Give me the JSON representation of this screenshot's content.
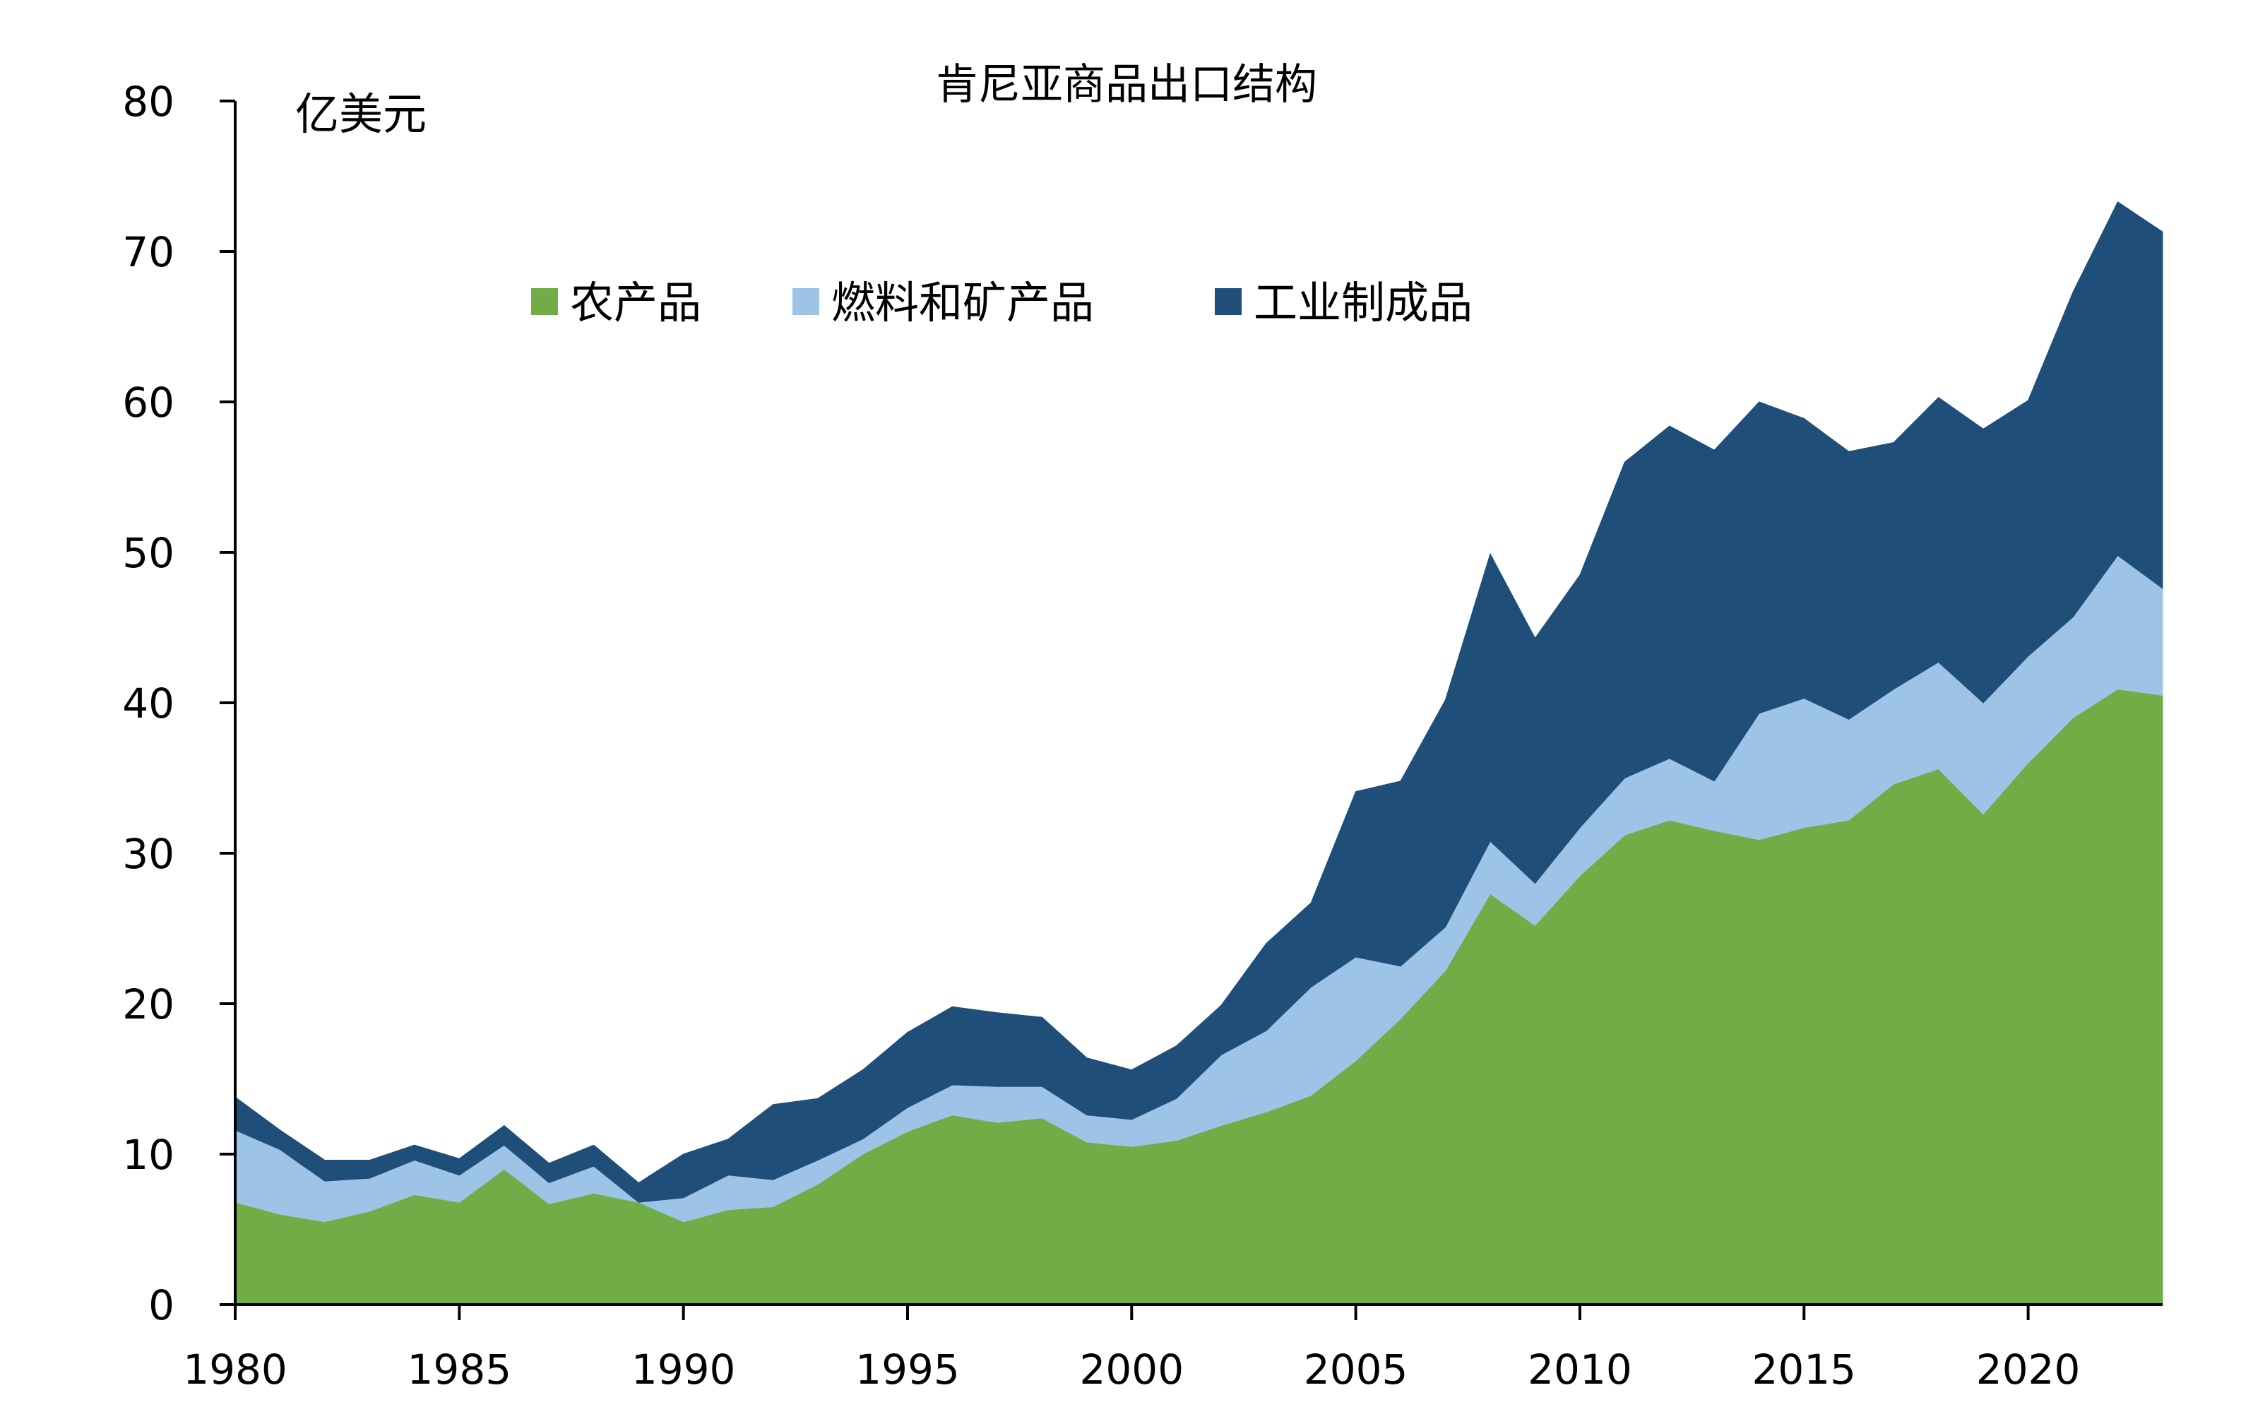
{
  "chart_data": {
    "type": "area",
    "stacked": true,
    "title": "肯尼亚商品出口结构",
    "ylabel": "亿美元",
    "xlabel": "",
    "ylim": [
      0,
      80
    ],
    "yticks": [
      0,
      10,
      20,
      30,
      40,
      50,
      60,
      70,
      80
    ],
    "xlim": [
      1980,
      2023
    ],
    "xticks": [
      1980,
      1985,
      1990,
      1995,
      2000,
      2005,
      2010,
      2015,
      2020
    ],
    "legend_position": "top-center",
    "x": [
      1980,
      1981,
      1982,
      1983,
      1984,
      1985,
      1986,
      1987,
      1988,
      1989,
      1990,
      1991,
      1992,
      1993,
      1994,
      1995,
      1996,
      1997,
      1998,
      1999,
      2000,
      2001,
      2002,
      2003,
      2004,
      2005,
      2006,
      2007,
      2008,
      2009,
      2010,
      2011,
      2012,
      2013,
      2014,
      2015,
      2016,
      2017,
      2018,
      2019,
      2020,
      2021,
      2022,
      2023
    ],
    "series": [
      {
        "name": "农产品",
        "color": "#70AD47",
        "values": [
          6.8,
          6.0,
          5.5,
          6.2,
          7.3,
          6.8,
          9.0,
          6.7,
          7.4,
          6.8,
          5.5,
          6.3,
          6.5,
          8.0,
          10.0,
          11.5,
          12.6,
          12.1,
          12.4,
          10.8,
          10.5,
          10.9,
          11.9,
          12.8,
          13.9,
          16.2,
          19.0,
          22.2,
          27.3,
          25.2,
          28.5,
          31.2,
          32.2,
          31.5,
          30.9,
          31.7,
          32.2,
          34.6,
          35.6,
          32.6,
          36.0,
          39.0,
          40.9,
          40.5
        ]
      },
      {
        "name": "燃料和矿产品",
        "color": "#9DC3E6",
        "values": [
          4.8,
          4.3,
          2.7,
          2.2,
          2.3,
          1.8,
          1.6,
          1.4,
          1.8,
          0.0,
          1.6,
          2.3,
          1.8,
          1.6,
          1.0,
          1.6,
          2.0,
          2.4,
          2.1,
          1.8,
          1.8,
          2.8,
          4.7,
          5.4,
          7.2,
          6.9,
          3.5,
          2.9,
          3.5,
          2.8,
          3.2,
          3.8,
          4.1,
          3.3,
          8.4,
          8.6,
          6.7,
          6.3,
          7.1,
          7.4,
          7.1,
          6.7,
          8.9,
          7.1
        ]
      },
      {
        "name": "工业制成品",
        "color": "#1F4E79",
        "values": [
          2.2,
          1.3,
          1.4,
          1.2,
          1.0,
          1.1,
          1.3,
          1.3,
          1.4,
          1.3,
          2.9,
          2.4,
          5.0,
          4.1,
          4.6,
          5.0,
          5.2,
          4.9,
          4.6,
          3.8,
          3.3,
          3.5,
          3.3,
          5.8,
          5.6,
          11.0,
          12.3,
          15.1,
          19.1,
          16.3,
          16.8,
          21.0,
          22.1,
          22.0,
          20.7,
          18.6,
          17.8,
          16.4,
          17.6,
          18.2,
          17.0,
          21.6,
          23.5,
          23.7
        ]
      }
    ]
  }
}
